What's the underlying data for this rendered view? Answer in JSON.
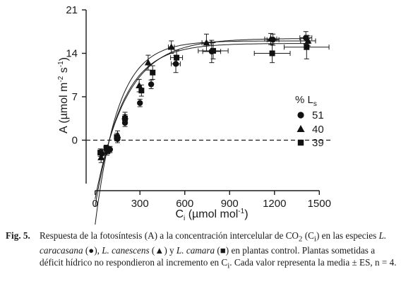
{
  "chart_data": {
    "type": "scatter",
    "ylabel_main": "A (µmol m",
    "ylabel_exp1": "-2",
    "ylabel_mid": " s",
    "ylabel_exp2": "-1",
    "ylabel_end": ")",
    "xlabel_main": "C",
    "xlabel_sub": "i",
    "xlabel_rest": " (µmol mol",
    "xlabel_exp": "-1",
    "xlabel_end": ")",
    "xlim": [
      -60,
      1560
    ],
    "ylim": [
      -7,
      21
    ],
    "xticks": [
      0,
      300,
      600,
      900,
      1200,
      1500
    ],
    "xtick_labels": [
      "0",
      "300",
      "600",
      "900",
      "1200",
      "1500"
    ],
    "yticks": [
      0,
      7,
      14,
      21
    ],
    "ytick_labels": [
      "0",
      "7",
      "14",
      "21"
    ],
    "zero_line": "dashed",
    "legend": {
      "title_main": "% L",
      "title_sub": "s",
      "placement": "right",
      "entries": [
        {
          "marker": "circle",
          "label": "51"
        },
        {
          "marker": "triangle",
          "label": "40"
        },
        {
          "marker": "square",
          "label": "39"
        }
      ]
    },
    "series": [
      {
        "marker": "circle",
        "curve": {
          "amax": 16.4,
          "k": 0.0048,
          "x0": 95
        },
        "points": [
          {
            "x": 45,
            "y": -2.2,
            "yerr": 0.7,
            "xerr": 0
          },
          {
            "x": 100,
            "y": -1.5,
            "yerr": 0.5,
            "xerr": 0
          },
          {
            "x": 150,
            "y": 0.2,
            "yerr": 0.6,
            "xerr": 0
          },
          {
            "x": 200,
            "y": 2.8,
            "yerr": 0.6,
            "xerr": 0
          },
          {
            "x": 300,
            "y": 6.0,
            "yerr": 0.6,
            "xerr": 0
          },
          {
            "x": 375,
            "y": 9.0,
            "yerr": 0.7,
            "xerr": 0
          },
          {
            "x": 540,
            "y": 12.3,
            "yerr": 1.4,
            "xerr": 30
          },
          {
            "x": 780,
            "y": 14.3,
            "yerr": 1.8,
            "xerr": 60
          },
          {
            "x": 1190,
            "y": 16.2,
            "yerr": 0.9,
            "xerr": 40
          },
          {
            "x": 1410,
            "y": 16.5,
            "yerr": 1.0,
            "xerr": 40
          }
        ]
      },
      {
        "marker": "triangle",
        "curve": {
          "amax": 16.0,
          "k": 0.0065,
          "x0": 95
        },
        "points": [
          {
            "x": 40,
            "y": -2.8,
            "yerr": 0.8,
            "xerr": 0
          },
          {
            "x": 80,
            "y": -1.8,
            "yerr": 0.6,
            "xerr": 0
          },
          {
            "x": 150,
            "y": 0.8,
            "yerr": 0.7,
            "xerr": 0
          },
          {
            "x": 200,
            "y": 3.8,
            "yerr": 0.7,
            "xerr": 0
          },
          {
            "x": 295,
            "y": 8.8,
            "yerr": 1.0,
            "xerr": 0
          },
          {
            "x": 355,
            "y": 12.5,
            "yerr": 1.2,
            "xerr": 0
          },
          {
            "x": 510,
            "y": 15.0,
            "yerr": 1.0,
            "xerr": 20
          },
          {
            "x": 745,
            "y": 15.7,
            "yerr": 1.4,
            "xerr": 30
          },
          {
            "x": 1175,
            "y": 16.3,
            "yerr": 0.9,
            "xerr": 40
          },
          {
            "x": 1425,
            "y": 16.0,
            "yerr": 0.8,
            "xerr": 50
          }
        ]
      },
      {
        "marker": "square",
        "curve": {
          "amax": 15.6,
          "k": 0.0055,
          "x0": 95
        },
        "points": [
          {
            "x": 35,
            "y": -2.0,
            "yerr": 0.6,
            "xerr": 0
          },
          {
            "x": 75,
            "y": -1.3,
            "yerr": 0.5,
            "xerr": 0
          },
          {
            "x": 145,
            "y": 0.5,
            "yerr": 0.6,
            "xerr": 0
          },
          {
            "x": 200,
            "y": 3.5,
            "yerr": 0.6,
            "xerr": 0
          },
          {
            "x": 310,
            "y": 8.0,
            "yerr": 0.9,
            "xerr": 0
          },
          {
            "x": 385,
            "y": 10.9,
            "yerr": 1.1,
            "xerr": 0
          },
          {
            "x": 545,
            "y": 13.3,
            "yerr": 1.2,
            "xerr": 40
          },
          {
            "x": 790,
            "y": 14.4,
            "yerr": 1.3,
            "xerr": 100
          },
          {
            "x": 1185,
            "y": 14.0,
            "yerr": 1.5,
            "xerr": 120
          },
          {
            "x": 1415,
            "y": 15.0,
            "yerr": 1.9,
            "xerr": 150
          }
        ]
      }
    ]
  },
  "caption": {
    "fig_label": "Fig. 5.",
    "t1": "Respuesta de la fotosíntesis (A) a la concentración intercelular de CO",
    "t1_sub": "2",
    "t2": " (C",
    "t2_sub": "i",
    "t3": ") en las especies ",
    "sp1": "L. caracasana",
    "t4": " (●), ",
    "sp2": "L. canescens",
    "t5": " (▲) y ",
    "sp3": "L. camara",
    "t6": " (■) en plantas control. Plantas sometidas a déficit hídrico no respondieron al incremento en C",
    "t6_sub": "i",
    "t7": ". Cada valor representa la media ± ES, n = 4."
  }
}
